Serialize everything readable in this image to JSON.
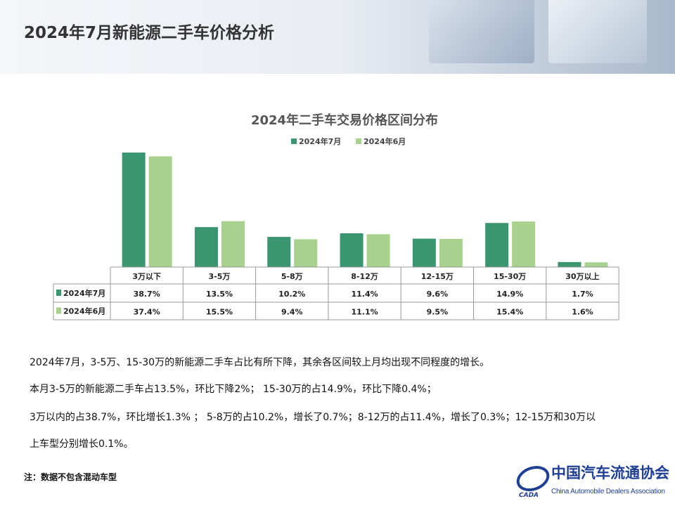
{
  "header": {
    "title": "2024年7月新能源二手车价格分析"
  },
  "colors": {
    "july": "#3a9670",
    "june": "#a8d18d"
  },
  "chart_data": {
    "type": "bar",
    "title": "2024年二手车交易价格区间分布",
    "categories": [
      "3万以下",
      "3-5万",
      "5-8万",
      "8-12万",
      "12-15万",
      "15-30万",
      "30万以上"
    ],
    "series": [
      {
        "name": "2024年7月",
        "values": [
          38.7,
          13.5,
          10.2,
          11.4,
          9.6,
          14.9,
          1.7
        ],
        "labels": [
          "38.7%",
          "13.5%",
          "10.2%",
          "11.4%",
          "9.6%",
          "14.9%",
          "1.7%"
        ]
      },
      {
        "name": "2024年6月",
        "values": [
          37.4,
          15.5,
          9.4,
          11.1,
          9.5,
          15.4,
          1.6
        ],
        "labels": [
          "37.4%",
          "15.5%",
          "9.4%",
          "11.1%",
          "9.5%",
          "15.4%",
          "1.6%"
        ]
      }
    ],
    "legend": "top",
    "grid": false,
    "data_table": true,
    "unit": "%"
  },
  "text": {
    "p1": "2024年7月，3-5万、15-30万的新能源二手车占比有所下降，其余各区间较上月均出现不同程度的增长。",
    "p2": "本月3-5万的新能源二手车占13.5%，环比下降2%；  15-30万的占14.9%，环比下降0.4%；",
    "p3": " 3万以内的占38.7%，环比增长1.3% ； 5-8万的占10.2%，增长了0.7%；8-12万的占11.4%，增长了0.3%；12-15万和30万以",
    "p4": "上车型分别增长0.1%。",
    "note": "注：数据不包含混动车型"
  },
  "logo": {
    "cn": "中国汽车流通协会",
    "en": "China Automobile Dealers Association",
    "abbr": "CADA"
  }
}
